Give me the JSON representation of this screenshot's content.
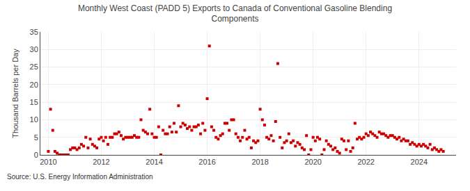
{
  "chart_data": {
    "type": "scatter",
    "title": "Monthly West Coast (PADD 5) Exports to Canada of Conventional Gasoline Blending\nComponents",
    "ylabel": "Thousand Barrels per Day",
    "annotations": [
      "Source: U.S. Energy Information Administration"
    ],
    "color": "#cc0000",
    "marker": "square",
    "grid": true,
    "xlim": [
      2009.7,
      2025.4
    ],
    "xticks": [
      2010,
      2012,
      2014,
      2016,
      2018,
      2020,
      2022,
      2024
    ],
    "ylim": [
      0,
      35
    ],
    "yticks": [
      0,
      5,
      10,
      15,
      20,
      25,
      30,
      35
    ],
    "x": [
      2010.0,
      2010.083,
      2010.167,
      2010.25,
      2010.333,
      2010.417,
      2010.5,
      2010.583,
      2010.667,
      2010.75,
      2010.833,
      2010.917,
      2011.0,
      2011.083,
      2011.167,
      2011.25,
      2011.333,
      2011.417,
      2011.5,
      2011.583,
      2011.667,
      2011.75,
      2011.833,
      2011.917,
      2012.0,
      2012.083,
      2012.167,
      2012.25,
      2012.333,
      2012.417,
      2012.5,
      2012.583,
      2012.667,
      2012.75,
      2012.833,
      2012.917,
      2013.0,
      2013.083,
      2013.167,
      2013.25,
      2013.333,
      2013.417,
      2013.5,
      2013.583,
      2013.667,
      2013.75,
      2013.833,
      2013.917,
      2014.0,
      2014.083,
      2014.167,
      2014.25,
      2014.333,
      2014.417,
      2014.5,
      2014.583,
      2014.667,
      2014.75,
      2014.833,
      2014.917,
      2015.0,
      2015.083,
      2015.167,
      2015.25,
      2015.333,
      2015.417,
      2015.5,
      2015.583,
      2015.667,
      2015.75,
      2015.833,
      2015.917,
      2016.0,
      2016.083,
      2016.167,
      2016.25,
      2016.333,
      2016.417,
      2016.5,
      2016.583,
      2016.667,
      2016.75,
      2016.833,
      2016.917,
      2017.0,
      2017.083,
      2017.167,
      2017.25,
      2017.333,
      2017.417,
      2017.5,
      2017.583,
      2017.667,
      2017.75,
      2017.833,
      2017.917,
      2018.0,
      2018.083,
      2018.167,
      2018.25,
      2018.333,
      2018.417,
      2018.5,
      2018.583,
      2018.667,
      2018.75,
      2018.833,
      2018.917,
      2019.0,
      2019.083,
      2019.167,
      2019.25,
      2019.333,
      2019.417,
      2019.5,
      2019.583,
      2019.667,
      2019.75,
      2019.833,
      2019.917,
      2020.0,
      2020.083,
      2020.167,
      2020.25,
      2020.333,
      2020.417,
      2020.5,
      2020.583,
      2020.667,
      2020.75,
      2020.833,
      2020.917,
      2021.0,
      2021.083,
      2021.167,
      2021.25,
      2021.333,
      2021.417,
      2021.5,
      2021.583,
      2021.667,
      2021.75,
      2021.833,
      2021.917,
      2022.0,
      2022.083,
      2022.167,
      2022.25,
      2022.333,
      2022.417,
      2022.5,
      2022.583,
      2022.667,
      2022.75,
      2022.833,
      2022.917,
      2023.0,
      2023.083,
      2023.167,
      2023.25,
      2023.333,
      2023.417,
      2023.5,
      2023.583,
      2023.667,
      2023.75,
      2023.833,
      2023.917,
      2024.0,
      2024.083,
      2024.167,
      2024.25,
      2024.333,
      2024.417,
      2024.5,
      2024.583,
      2024.667,
      2024.75,
      2024.833,
      2024.917
    ],
    "values": [
      1.0,
      13.0,
      7.0,
      1.0,
      0.5,
      0.0,
      0.0,
      0.0,
      0.0,
      0.0,
      1.5,
      2.0,
      2.0,
      1.5,
      2.0,
      3.0,
      2.5,
      5.0,
      2.0,
      4.5,
      3.0,
      2.5,
      2.0,
      4.5,
      5.0,
      4.0,
      5.0,
      3.0,
      5.0,
      5.0,
      6.0,
      6.0,
      6.5,
      5.5,
      4.5,
      5.0,
      5.0,
      5.0,
      5.0,
      5.5,
      5.0,
      5.0,
      10.0,
      7.0,
      6.5,
      6.0,
      13.0,
      6.0,
      5.0,
      5.0,
      8.0,
      0.0,
      7.0,
      6.0,
      6.0,
      8.0,
      6.5,
      9.0,
      6.5,
      14.0,
      8.0,
      9.0,
      8.5,
      7.5,
      8.0,
      7.0,
      8.0,
      8.0,
      8.5,
      6.0,
      9.0,
      7.0,
      16.0,
      31.0,
      8.0,
      7.0,
      5.0,
      4.5,
      5.5,
      6.0,
      9.0,
      9.0,
      7.0,
      10.0,
      10.0,
      6.0,
      5.0,
      4.0,
      5.0,
      7.0,
      4.5,
      5.0,
      2.0,
      4.0,
      3.5,
      4.0,
      13.0,
      10.0,
      8.5,
      5.0,
      4.5,
      5.5,
      4.0,
      9.5,
      26.0,
      5.0,
      2.0,
      3.5,
      4.0,
      6.0,
      3.5,
      4.0,
      2.5,
      3.5,
      3.0,
      2.0,
      1.5,
      5.5,
      0.0,
      1.5,
      5.0,
      4.0,
      5.0,
      4.5,
      0.0,
      1.5,
      4.0,
      3.0,
      2.5,
      1.5,
      2.0,
      1.0,
      0.5,
      4.5,
      4.0,
      1.5,
      4.0,
      1.0,
      2.0,
      9.0,
      4.5,
      5.0,
      4.5,
      5.0,
      6.0,
      5.5,
      6.5,
      6.0,
      5.5,
      5.0,
      6.5,
      6.0,
      6.0,
      5.5,
      5.0,
      5.5,
      5.5,
      5.0,
      4.5,
      5.0,
      4.0,
      4.5,
      4.0,
      4.0,
      3.0,
      3.5,
      3.0,
      2.5,
      3.0,
      2.5,
      3.0,
      2.5,
      2.0,
      3.0,
      1.5,
      2.0,
      1.5,
      1.0,
      1.5,
      1.0
    ]
  }
}
